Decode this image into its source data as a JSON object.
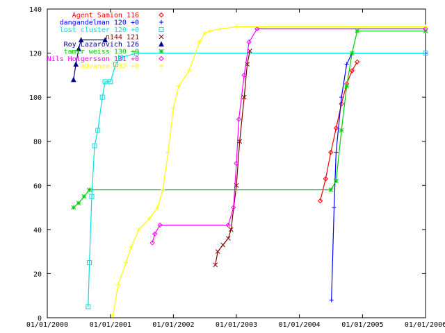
{
  "chart_data": {
    "type": "line",
    "title": "",
    "xlabel": "",
    "ylabel": "",
    "x_scale": "date",
    "xlim": [
      "2000-01-01",
      "2006-01-01"
    ],
    "ylim": [
      0,
      140
    ],
    "grid": false,
    "legend_position": "top-left",
    "x_ticks": [
      {
        "date": "2000-01-01",
        "label": "01/01/2000"
      },
      {
        "date": "2001-01-01",
        "label": "01/01/2001"
      },
      {
        "date": "2002-01-01",
        "label": "01/01/2002"
      },
      {
        "date": "2003-01-01",
        "label": "01/01/2003"
      },
      {
        "date": "2004-01-01",
        "label": "01/01/2004"
      },
      {
        "date": "2005-01-01",
        "label": "01/01/2005"
      },
      {
        "date": "2006-01-01",
        "label": "01/01/2006"
      }
    ],
    "y_ticks": [
      0,
      20,
      40,
      60,
      80,
      100,
      120,
      140
    ],
    "series": [
      {
        "name": "Agent Samion 116",
        "color": "#ff0000",
        "marker": "diamond",
        "points": [
          [
            "2004-05-01",
            53
          ],
          [
            "2004-06-01",
            63
          ],
          [
            "2004-07-01",
            75
          ],
          [
            "2004-08-01",
            86
          ],
          [
            "2004-09-01",
            97
          ],
          [
            "2004-10-01",
            106
          ],
          [
            "2004-11-01",
            112
          ],
          [
            "2004-12-01",
            116
          ]
        ]
      },
      {
        "name": "dangandelman 120 +0",
        "color": "#0000ff",
        "marker": "plus",
        "points": [
          [
            "2004-07-05",
            8
          ],
          [
            "2004-07-20",
            50
          ],
          [
            "2004-08-01",
            75
          ],
          [
            "2004-09-01",
            100
          ],
          [
            "2004-10-01",
            115
          ],
          [
            "2004-11-01",
            120
          ],
          [
            "2006-01-01",
            120
          ]
        ]
      },
      {
        "name": "lost cluster 120 +0",
        "color": "#00e0e0",
        "marker": "square",
        "points": [
          [
            "2000-08-25",
            5
          ],
          [
            "2000-09-01",
            25
          ],
          [
            "2000-09-15",
            55
          ],
          [
            "2000-10-01",
            78
          ],
          [
            "2000-10-20",
            85
          ],
          [
            "2000-11-15",
            100
          ],
          [
            "2000-12-01",
            107
          ],
          [
            "2001-01-01",
            107
          ],
          [
            "2001-02-01",
            115
          ],
          [
            "2001-03-01",
            118
          ],
          [
            "2001-06-01",
            120
          ],
          [
            "2006-01-01",
            120
          ]
        ]
      },
      {
        "name": "n144 121",
        "color": "#800000",
        "marker": "cross",
        "points": [
          [
            "2002-09-01",
            24
          ],
          [
            "2002-09-15",
            30
          ],
          [
            "2002-10-15",
            33
          ],
          [
            "2002-11-15",
            36
          ],
          [
            "2002-12-01",
            40
          ],
          [
            "2003-01-01",
            60
          ],
          [
            "2003-01-20",
            80
          ],
          [
            "2003-02-15",
            100
          ],
          [
            "2003-03-05",
            115
          ],
          [
            "2003-03-20",
            121
          ]
        ]
      },
      {
        "name": "Roy Lazarovich 126",
        "color": "#00008b",
        "marker": "triangle",
        "points": [
          [
            "2000-06-01",
            108
          ],
          [
            "2000-06-15",
            115
          ],
          [
            "2000-07-01",
            122
          ],
          [
            "2000-07-15",
            126
          ],
          [
            "2000-12-01",
            126
          ]
        ]
      },
      {
        "name": "tamir weiss 130 +0",
        "color": "#00cc00",
        "marker": "star",
        "points": [
          [
            "2000-06-01",
            50
          ],
          [
            "2000-07-01",
            52
          ],
          [
            "2000-08-01",
            55
          ],
          [
            "2000-09-01",
            58
          ],
          [
            "2004-07-01",
            58
          ],
          [
            "2004-08-01",
            62
          ],
          [
            "2004-09-01",
            85
          ],
          [
            "2004-10-01",
            105
          ],
          [
            "2004-11-01",
            120
          ],
          [
            "2004-12-01",
            130
          ],
          [
            "2006-01-01",
            130
          ]
        ]
      },
      {
        "name": "Nils Holgersson 131 +0",
        "color": "#ff00ff",
        "marker": "diamond",
        "points": [
          [
            "2001-09-01",
            34
          ],
          [
            "2001-09-15",
            38
          ],
          [
            "2001-10-15",
            42
          ],
          [
            "2002-11-15",
            42
          ],
          [
            "2002-12-15",
            50
          ],
          [
            "2003-01-01",
            70
          ],
          [
            "2003-01-15",
            90
          ],
          [
            "2003-02-15",
            110
          ],
          [
            "2003-03-15",
            125
          ],
          [
            "2003-05-01",
            131
          ],
          [
            "2006-01-01",
            131
          ]
        ]
      },
      {
        "name": "advance 132 +0",
        "color": "#ffff00",
        "marker": "plus",
        "points": [
          [
            "2001-01-15",
            1
          ],
          [
            "2001-02-15",
            15
          ],
          [
            "2001-04-01",
            25
          ],
          [
            "2001-05-01",
            32
          ],
          [
            "2001-06-15",
            40
          ],
          [
            "2001-08-15",
            45
          ],
          [
            "2001-10-01",
            50
          ],
          [
            "2001-11-01",
            58
          ],
          [
            "2001-12-01",
            75
          ],
          [
            "2002-01-01",
            95
          ],
          [
            "2002-02-01",
            105
          ],
          [
            "2002-04-01",
            112
          ],
          [
            "2002-06-01",
            125
          ],
          [
            "2002-07-01",
            129
          ],
          [
            "2002-08-01",
            130
          ],
          [
            "2002-10-01",
            131
          ],
          [
            "2003-01-01",
            132
          ],
          [
            "2006-01-01",
            132
          ]
        ]
      }
    ]
  }
}
